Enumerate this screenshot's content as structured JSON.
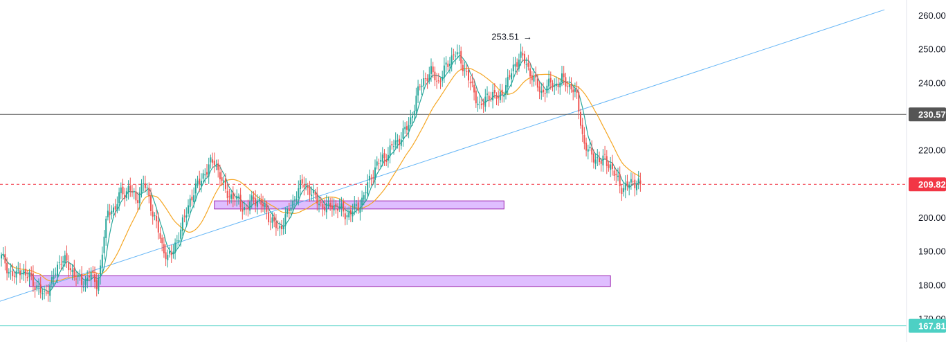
{
  "chart_data": {
    "type": "candlestick",
    "y_axis": {
      "position": "right",
      "ticks": [
        170,
        180,
        190,
        200,
        210,
        220,
        230,
        240,
        250,
        260
      ],
      "tick_labels": [
        "170.00",
        "180.00",
        "190.00",
        "200.00",
        "210.00",
        "220.00",
        "230.00",
        "240.00",
        "250.00",
        "260.00"
      ],
      "ylim": [
        166,
        263
      ]
    },
    "grid": false,
    "colors": {
      "up": "#26a69a",
      "down": "#ef5350",
      "ma_fast": "#26a69a",
      "ma_slow": "#f5a623",
      "trendline": "#64b5f6",
      "zone_fill": "#d9b3ff",
      "zone_stroke": "#9c27b0",
      "resistance_line": "#555555",
      "current_price": "#f23645",
      "support_line": "#4dd0c4"
    },
    "annotations": {
      "high_label": "253.51",
      "high_value": 253.51,
      "arrow": "→"
    },
    "price_levels": [
      {
        "name": "resistance",
        "value": 230.57,
        "label": "230.57",
        "style": "solid",
        "badge_color": "#555555"
      },
      {
        "name": "current-price",
        "value": 209.82,
        "label": "209.82",
        "style": "dashed",
        "badge_color": "#f23645"
      },
      {
        "name": "support",
        "value": 167.81,
        "label": "167.81",
        "style": "solid",
        "badge_color": "#4dd0c4"
      }
    ],
    "zones": [
      {
        "name": "upper-demand-zone",
        "top": 204.9,
        "bottom": 202.5,
        "x_start_bar": 114,
        "x_end_bar": 269
      },
      {
        "name": "lower-demand-zone",
        "top": 182.7,
        "bottom": 179.5,
        "x_start_bar": 15,
        "x_end_bar": 326
      }
    ],
    "trendline": {
      "bar_start": 0,
      "value_start": 175.1,
      "bar_end": 343,
      "value_end": 237.9
    },
    "closes": [
      188,
      187,
      184,
      183,
      182,
      185,
      184,
      182,
      183,
      181,
      179,
      178,
      177,
      179,
      180,
      183,
      186,
      188,
      187,
      185,
      184,
      183,
      181,
      180,
      182,
      184,
      181,
      180,
      186,
      195,
      201,
      203,
      202,
      206,
      208,
      207,
      209,
      207,
      205,
      208,
      210,
      208,
      204,
      200,
      197,
      192,
      190,
      188,
      189,
      192,
      195,
      198,
      201,
      205,
      207,
      209,
      211,
      213,
      214,
      216,
      217,
      214,
      211,
      208,
      207,
      206,
      205,
      205,
      203,
      202,
      204,
      206,
      205,
      204,
      203,
      201,
      199,
      198,
      196,
      198,
      200,
      202,
      204,
      207,
      209,
      210,
      209,
      208,
      206,
      205,
      204,
      203,
      203,
      204,
      203,
      203,
      202,
      201,
      201,
      202,
      203,
      204,
      206,
      209,
      212,
      214,
      216,
      217,
      218,
      219,
      221,
      222,
      223,
      225,
      226,
      228,
      232,
      236,
      239,
      241,
      242,
      243,
      242,
      240,
      242,
      244,
      246,
      248,
      249,
      247,
      245,
      243,
      240,
      237,
      235,
      233,
      234,
      236,
      237,
      236,
      235,
      237,
      239,
      241,
      244,
      246,
      248,
      247,
      245,
      243,
      241,
      239,
      237,
      238,
      239,
      240,
      239,
      240,
      241,
      240,
      239,
      238,
      236,
      230,
      222,
      220,
      219,
      218,
      217,
      216,
      218,
      216,
      214,
      212,
      211,
      208,
      209,
      210,
      211,
      210,
      209.82
    ]
  }
}
